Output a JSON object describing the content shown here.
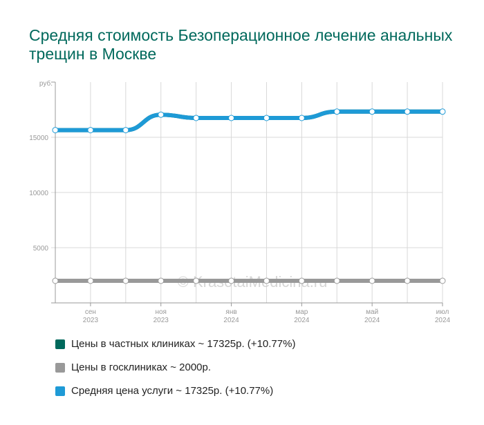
{
  "title": "Средняя стоимость Безоперационное лечение анальных трещин в Москве",
  "watermark": "© KrasotaiMedicina.ru",
  "chart_data": {
    "type": "line",
    "ylabel": "руб.",
    "ylim": [
      0,
      17500
    ],
    "yticks": [
      5000,
      10000,
      15000
    ],
    "grid": true,
    "x": [
      "2023-08",
      "2023-09",
      "2023-10",
      "2023-11",
      "2023-12",
      "2024-01",
      "2024-02",
      "2024-03",
      "2024-04",
      "2024-05",
      "2024-06",
      "2024-07"
    ],
    "xtick_labels": [
      {
        "x": "2023-09",
        "month": "сен",
        "year": "2023"
      },
      {
        "x": "2023-11",
        "month": "ноя",
        "year": "2023"
      },
      {
        "x": "2024-01",
        "month": "янв",
        "year": "2024"
      },
      {
        "x": "2024-03",
        "month": "мар",
        "year": "2024"
      },
      {
        "x": "2024-05",
        "month": "май",
        "year": "2024"
      },
      {
        "x": "2024-07",
        "month": "июл",
        "year": "2024"
      }
    ],
    "series": [
      {
        "name": "Цены в частных клиниках ~ 17325р. (+10.77%)",
        "color": "#00695c",
        "values": [
          15650,
          15650,
          15650,
          17050,
          16750,
          16750,
          16750,
          16750,
          17325,
          17325,
          17325,
          17325
        ]
      },
      {
        "name": "Цены в госклиниках ~ 2000р.",
        "color": "#999999",
        "values": [
          2000,
          2000,
          2000,
          2000,
          2000,
          2000,
          2000,
          2000,
          2000,
          2000,
          2000,
          2000
        ]
      },
      {
        "name": "Средняя цена услуги ~ 17325р. (+10.77%)",
        "color": "#1e9ad6",
        "values": [
          15650,
          15650,
          15650,
          17050,
          16750,
          16750,
          16750,
          16750,
          17325,
          17325,
          17325,
          17325
        ]
      }
    ],
    "legend": "bottom"
  }
}
